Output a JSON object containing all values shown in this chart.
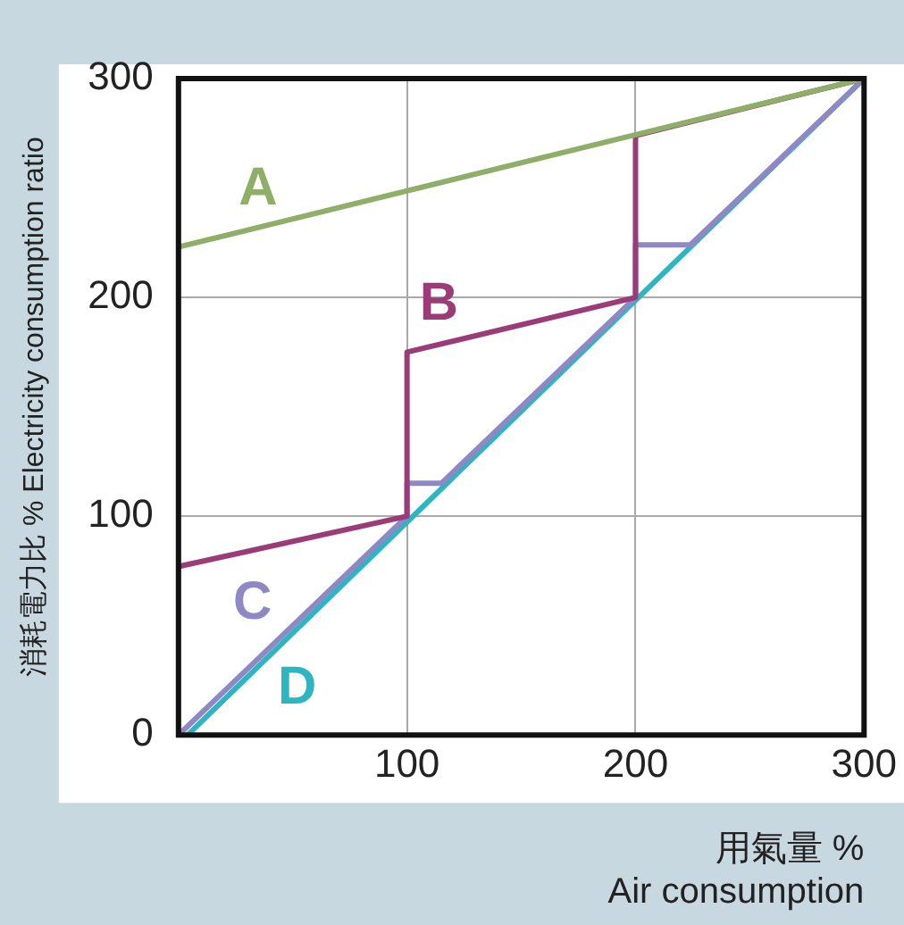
{
  "chart_data": {
    "type": "line",
    "xlabel": "用氣量 %\nAir consumption",
    "ylabel": "消耗電力比 % Electricity consumption ratio",
    "xlim": [
      0,
      300
    ],
    "ylim": [
      0,
      300
    ],
    "xticks": [
      100,
      200,
      300
    ],
    "yticks": [
      0,
      100,
      200,
      300
    ],
    "grid": true,
    "legend": false,
    "marker": "none",
    "line_style": "solid",
    "series": [
      {
        "name": "A",
        "color": "#8fae67",
        "x": [
          0,
          300
        ],
        "values": [
          223,
          300
        ]
      },
      {
        "name": "B",
        "color": "#9b3b77",
        "x": [
          0,
          100,
          100,
          200,
          200,
          300
        ],
        "values": [
          77,
          100,
          175,
          200,
          274,
          300
        ]
      },
      {
        "name": "C",
        "color": "#8e88c4",
        "x": [
          0,
          100,
          100,
          115,
          200,
          200,
          224,
          300
        ],
        "values": [
          0,
          100,
          115,
          115,
          200,
          224,
          224,
          300
        ]
      },
      {
        "name": "D",
        "color": "#2db6c2",
        "x": [
          4,
          300
        ],
        "values": [
          0,
          300
        ]
      }
    ]
  }
}
